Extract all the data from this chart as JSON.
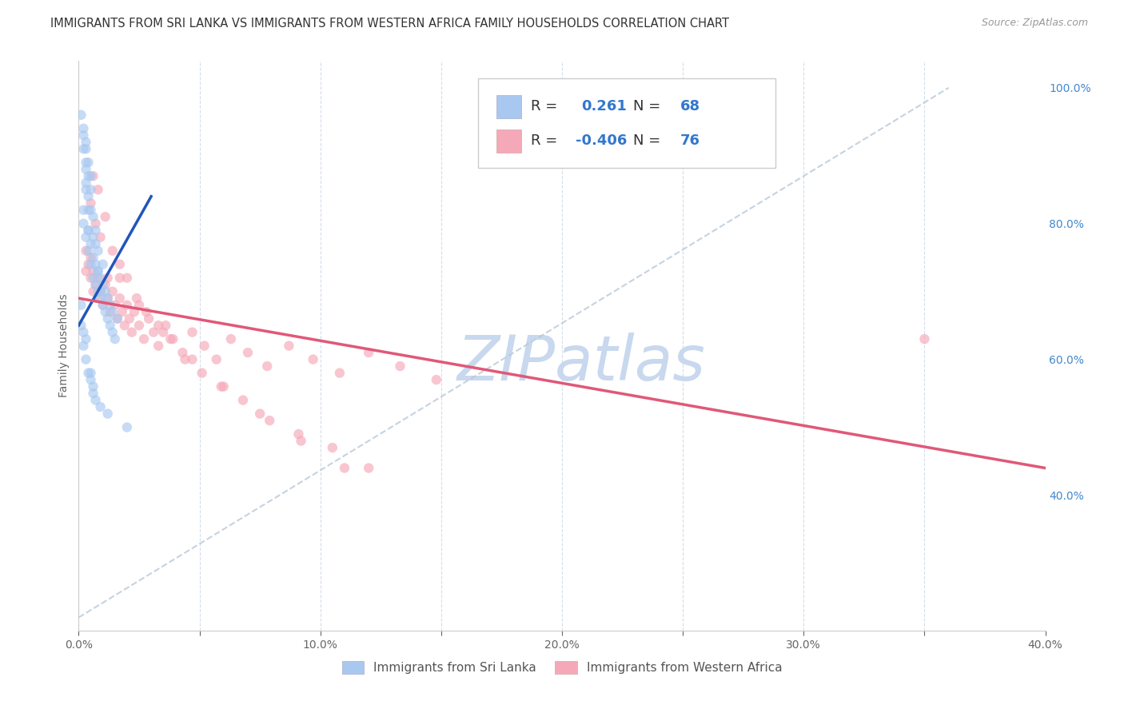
{
  "title": "IMMIGRANTS FROM SRI LANKA VS IMMIGRANTS FROM WESTERN AFRICA FAMILY HOUSEHOLDS CORRELATION CHART",
  "source": "Source: ZipAtlas.com",
  "ylabel": "Family Households",
  "xlim": [
    0.0,
    0.4
  ],
  "ylim": [
    0.2,
    1.04
  ],
  "xticks": [
    0.0,
    0.05,
    0.1,
    0.15,
    0.2,
    0.25,
    0.3,
    0.35,
    0.4
  ],
  "xtick_labels": [
    "0.0%",
    "",
    "10.0%",
    "",
    "20.0%",
    "",
    "30.0%",
    "",
    "40.0%"
  ],
  "yticks_right": [
    1.0,
    0.8,
    0.6,
    0.4
  ],
  "ytick_labels_right": [
    "100.0%",
    "80.0%",
    "60.0%",
    "40.0%"
  ],
  "sri_lanka_R": 0.261,
  "sri_lanka_N": 68,
  "western_africa_R": -0.406,
  "western_africa_N": 76,
  "sri_lanka_color": "#a8c8f0",
  "western_africa_color": "#f5a8b8",
  "sri_lanka_line_color": "#2255bb",
  "western_africa_line_color": "#e05878",
  "scatter_alpha": 0.65,
  "scatter_size": 80,
  "background_color": "#ffffff",
  "grid_color": "#d0dae8",
  "title_fontsize": 10.5,
  "axis_label_fontsize": 10,
  "tick_fontsize": 10,
  "legend_fontsize": 13,
  "watermark_color": "#c8d8ee",
  "watermark_fontsize": 56,
  "sri_lanka_trend": [
    0.0,
    0.03,
    0.65,
    0.84
  ],
  "western_africa_trend": [
    0.0,
    0.4,
    0.69,
    0.44
  ],
  "diag_line": [
    0.0,
    0.36,
    0.22,
    1.0
  ],
  "sri_lanka_x": [
    0.002,
    0.002,
    0.003,
    0.004,
    0.004,
    0.005,
    0.005,
    0.006,
    0.006,
    0.006,
    0.007,
    0.007,
    0.007,
    0.008,
    0.008,
    0.009,
    0.009,
    0.01,
    0.01,
    0.01,
    0.011,
    0.011,
    0.012,
    0.012,
    0.013,
    0.013,
    0.014,
    0.014,
    0.015,
    0.016,
    0.003,
    0.003,
    0.003,
    0.004,
    0.004,
    0.005,
    0.005,
    0.006,
    0.007,
    0.008,
    0.008,
    0.009,
    0.002,
    0.002,
    0.003,
    0.003,
    0.004,
    0.004,
    0.005,
    0.006,
    0.001,
    0.001,
    0.002,
    0.002,
    0.003,
    0.003,
    0.004,
    0.005,
    0.006,
    0.007,
    0.009,
    0.012,
    0.02,
    0.001,
    0.002,
    0.003,
    0.004,
    0.005
  ],
  "sri_lanka_y": [
    0.8,
    0.82,
    0.78,
    0.76,
    0.79,
    0.74,
    0.77,
    0.72,
    0.75,
    0.78,
    0.71,
    0.74,
    0.77,
    0.7,
    0.73,
    0.69,
    0.72,
    0.68,
    0.71,
    0.74,
    0.67,
    0.7,
    0.66,
    0.69,
    0.65,
    0.68,
    0.64,
    0.67,
    0.63,
    0.66,
    0.86,
    0.89,
    0.92,
    0.84,
    0.87,
    0.82,
    0.85,
    0.81,
    0.79,
    0.76,
    0.73,
    0.7,
    0.94,
    0.91,
    0.88,
    0.85,
    0.82,
    0.79,
    0.58,
    0.55,
    0.65,
    0.68,
    0.62,
    0.64,
    0.6,
    0.63,
    0.58,
    0.57,
    0.56,
    0.54,
    0.53,
    0.52,
    0.5,
    0.96,
    0.93,
    0.91,
    0.89,
    0.87
  ],
  "western_africa_x": [
    0.003,
    0.003,
    0.004,
    0.005,
    0.005,
    0.006,
    0.006,
    0.007,
    0.008,
    0.008,
    0.009,
    0.01,
    0.011,
    0.012,
    0.012,
    0.013,
    0.014,
    0.015,
    0.016,
    0.017,
    0.018,
    0.019,
    0.02,
    0.021,
    0.022,
    0.023,
    0.025,
    0.027,
    0.029,
    0.031,
    0.033,
    0.036,
    0.039,
    0.043,
    0.047,
    0.052,
    0.057,
    0.063,
    0.07,
    0.078,
    0.087,
    0.097,
    0.108,
    0.12,
    0.133,
    0.148,
    0.005,
    0.007,
    0.009,
    0.011,
    0.014,
    0.017,
    0.02,
    0.024,
    0.028,
    0.033,
    0.038,
    0.044,
    0.051,
    0.059,
    0.068,
    0.079,
    0.091,
    0.105,
    0.12,
    0.017,
    0.025,
    0.035,
    0.047,
    0.06,
    0.075,
    0.092,
    0.11,
    0.35,
    0.006,
    0.008
  ],
  "western_africa_y": [
    0.76,
    0.73,
    0.74,
    0.72,
    0.75,
    0.7,
    0.73,
    0.71,
    0.69,
    0.72,
    0.7,
    0.68,
    0.71,
    0.69,
    0.72,
    0.67,
    0.7,
    0.68,
    0.66,
    0.69,
    0.67,
    0.65,
    0.68,
    0.66,
    0.64,
    0.67,
    0.65,
    0.63,
    0.66,
    0.64,
    0.62,
    0.65,
    0.63,
    0.61,
    0.64,
    0.62,
    0.6,
    0.63,
    0.61,
    0.59,
    0.62,
    0.6,
    0.58,
    0.61,
    0.59,
    0.57,
    0.83,
    0.8,
    0.78,
    0.81,
    0.76,
    0.74,
    0.72,
    0.69,
    0.67,
    0.65,
    0.63,
    0.6,
    0.58,
    0.56,
    0.54,
    0.51,
    0.49,
    0.47,
    0.44,
    0.72,
    0.68,
    0.64,
    0.6,
    0.56,
    0.52,
    0.48,
    0.44,
    0.63,
    0.87,
    0.85
  ]
}
